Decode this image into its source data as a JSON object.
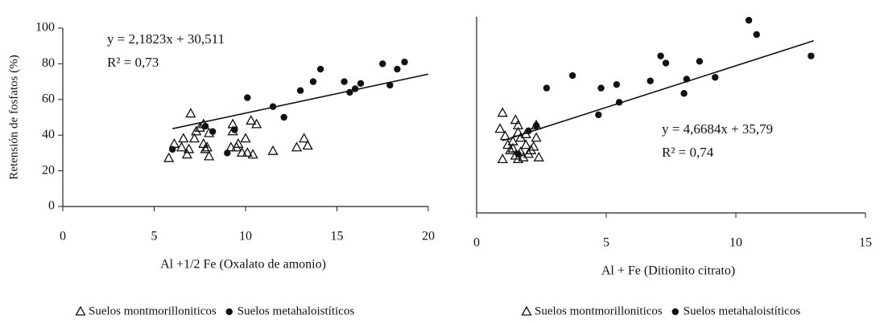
{
  "chart_data": [
    {
      "type": "scatter",
      "y_label": "Retensión de fosfatos (%)",
      "x_label": "Al +1/2 Fe (Oxalato de amonio)",
      "xlim": [
        0,
        20
      ],
      "xticks": [
        0,
        5,
        10,
        15,
        20
      ],
      "ylim": [
        0,
        100
      ],
      "yticks": [
        0,
        20,
        40,
        60,
        80,
        100
      ],
      "annotations": [
        "y = 2,1823x + 30,511",
        "R² = 0,73"
      ],
      "trendline": {
        "x": [
          6,
          20
        ],
        "y": [
          43.6,
          74.2
        ]
      },
      "series": [
        {
          "name": "Suelos montmorilloniticos",
          "marker": "triangle",
          "color": "#111111",
          "x": [
            5.8,
            6.1,
            6.5,
            6.6,
            6.8,
            6.9,
            7.0,
            7.2,
            7.3,
            7.5,
            7.7,
            7.8,
            8.0,
            8.0,
            9.3,
            9.3,
            9.5,
            9.6,
            9.8,
            10.0,
            10.1,
            10.3,
            10.4,
            10.6,
            11.5,
            12.8,
            13.2,
            13.4,
            9.2,
            7.7,
            7.9
          ],
          "values": [
            27,
            35,
            33,
            38,
            29,
            32,
            52,
            38,
            42,
            44,
            35,
            32,
            28,
            41,
            42,
            46,
            33,
            35,
            30,
            38,
            30,
            48,
            29,
            46,
            31,
            33,
            38,
            34,
            33,
            46,
            33
          ]
        },
        {
          "name": "Suelos metahaloistíticos",
          "marker": "circle",
          "color": "#111111",
          "x": [
            6.0,
            7.8,
            8.2,
            9.0,
            9.4,
            10.1,
            11.5,
            12.1,
            13.0,
            13.7,
            14.1,
            15.4,
            15.7,
            16.0,
            16.3,
            17.5,
            17.9,
            18.3,
            18.7
          ],
          "values": [
            32,
            45,
            42,
            30,
            43,
            61,
            56,
            50,
            65,
            70,
            77,
            70,
            64,
            66,
            69,
            80,
            68,
            77,
            81
          ]
        }
      ]
    },
    {
      "type": "scatter",
      "x_label": "Al + Fe  (Ditionito citrato)",
      "xlim": [
        0,
        15
      ],
      "xticks": [
        0,
        5,
        10,
        15
      ],
      "ylim": [
        0,
        110
      ],
      "annotations": [
        "y = 4,6684x + 35,79",
        "R² = 0,74"
      ],
      "trendline": {
        "x": [
          1,
          13
        ],
        "y": [
          40.5,
          96.5
        ]
      },
      "series": [
        {
          "name": "Suelos montmorilloniticos",
          "marker": "triangle",
          "color": "#111111",
          "x": [
            0.9,
            1.0,
            1.0,
            1.1,
            1.2,
            1.3,
            1.4,
            1.4,
            1.5,
            1.5,
            1.6,
            1.6,
            1.7,
            1.7,
            1.8,
            1.9,
            1.9,
            2.0,
            2.1,
            2.2,
            2.3,
            2.3,
            2.4,
            1.6
          ],
          "values": [
            47,
            56,
            30,
            43,
            38,
            35,
            40,
            36,
            52,
            32,
            49,
            45,
            42,
            34,
            31,
            44,
            38,
            33,
            35,
            37,
            42,
            49,
            31,
            30
          ]
        },
        {
          "name": "Suelos metahaloistíticos",
          "marker": "circle",
          "color": "#111111",
          "x": [
            1.6,
            2.0,
            2.3,
            2.7,
            3.7,
            4.7,
            4.8,
            5.4,
            5.5,
            6.7,
            7.1,
            7.3,
            8.0,
            8.1,
            8.6,
            9.2,
            10.5,
            10.8,
            12.9
          ],
          "values": [
            33,
            46,
            49,
            70,
            77,
            55,
            70,
            72,
            62,
            74,
            88,
            84,
            67,
            75,
            85,
            76,
            108,
            100,
            88
          ]
        }
      ]
    }
  ]
}
